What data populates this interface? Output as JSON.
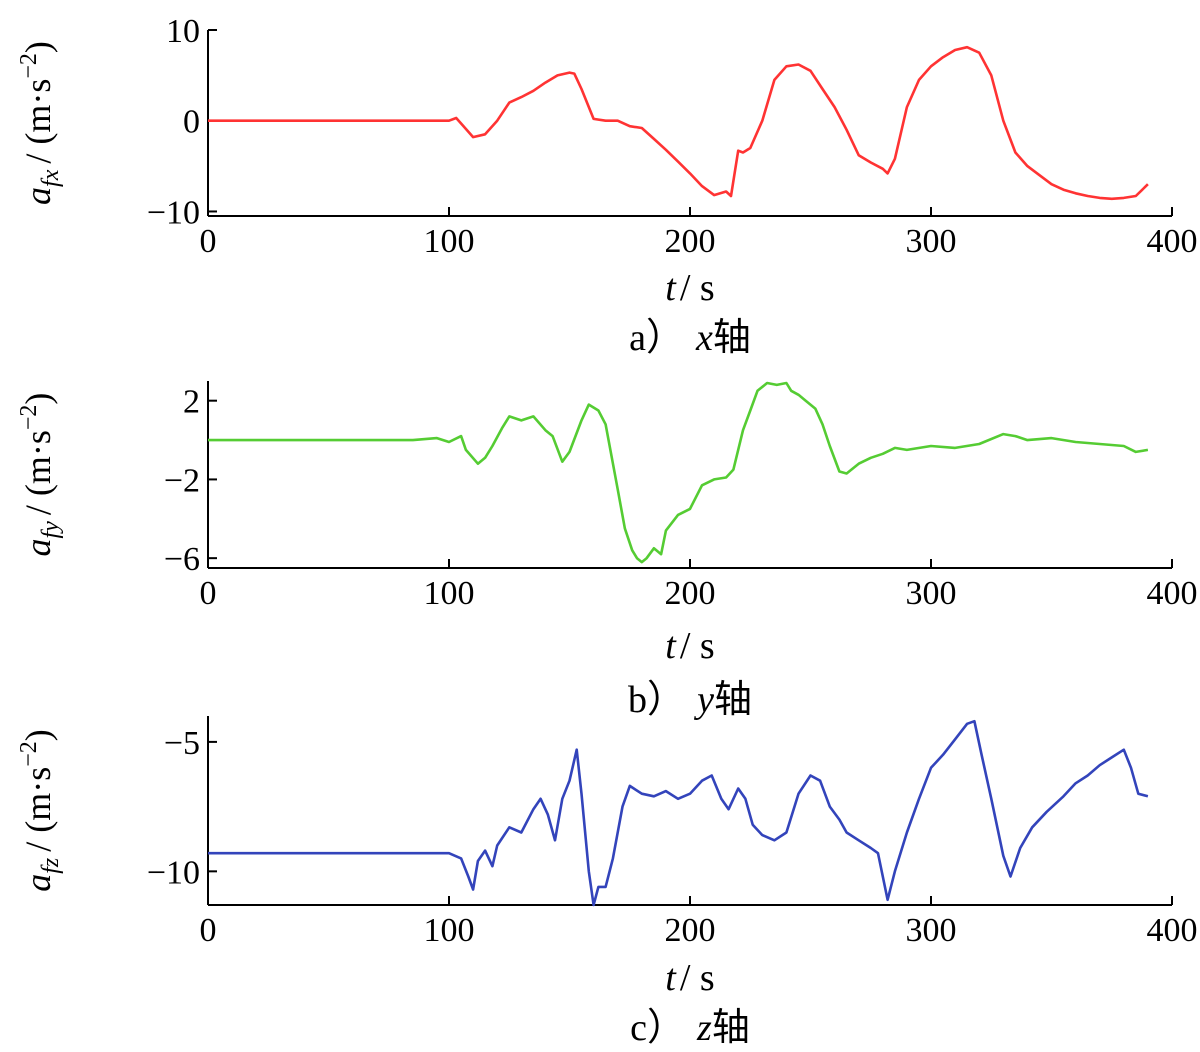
{
  "chart_data": [
    {
      "type": "line",
      "caption": "a） x轴",
      "caption_letter": "a）",
      "caption_axis": "x",
      "caption_suffix": "轴",
      "ylabel": "a_fx / (m·s^-2)",
      "ylabel_var": "a",
      "ylabel_sub": "fx",
      "ylabel_unit": "/ (m·s",
      "ylabel_exp": "−2",
      "xlabel": "t / s",
      "xlabel_var": "t",
      "xlabel_unit": "/ s",
      "xlim": [
        0,
        400
      ],
      "ylim": [
        -10.5,
        10
      ],
      "xticks": [
        0,
        100,
        200,
        300,
        400
      ],
      "xtick_labels": [
        "0",
        "100",
        "200",
        "300",
        "400"
      ],
      "yticks": [
        -10,
        0,
        10
      ],
      "ytick_labels": [
        "−10",
        "0",
        "10"
      ],
      "color": "#ff3333",
      "series": [
        {
          "x": [
            0,
            50,
            100,
            103,
            105,
            110,
            115,
            120,
            125,
            130,
            135,
            140,
            145,
            150,
            152,
            155,
            160,
            165,
            170,
            175,
            180,
            185,
            190,
            195,
            200,
            205,
            210,
            215,
            217,
            220,
            222,
            225,
            230,
            235,
            240,
            245,
            250,
            255,
            260,
            265,
            270,
            275,
            280,
            282,
            285,
            290,
            295,
            300,
            305,
            310,
            315,
            320,
            325,
            330,
            335,
            340,
            345,
            350,
            355,
            360,
            365,
            370,
            375,
            380,
            385,
            390
          ],
          "y": [
            0,
            0,
            0,
            0.3,
            -0.3,
            -1.8,
            -1.5,
            0,
            2,
            2.6,
            3.3,
            4.2,
            5,
            5.3,
            5.2,
            3.5,
            0.2,
            0,
            0,
            -0.6,
            -0.8,
            -2,
            -3.2,
            -4.5,
            -5.8,
            -7.2,
            -8.2,
            -7.8,
            -8.3,
            -3.3,
            -3.5,
            -3,
            0,
            4.5,
            6,
            6.2,
            5.5,
            3.5,
            1.5,
            -1,
            -3.8,
            -4.6,
            -5.3,
            -5.8,
            -4.2,
            1.5,
            4.5,
            6,
            7,
            7.8,
            8.1,
            7.5,
            5,
            0,
            -3.5,
            -5,
            -6,
            -7,
            -7.6,
            -8,
            -8.3,
            -8.5,
            -8.6,
            -8.5,
            -8.3,
            -7
          ]
        }
      ]
    },
    {
      "type": "line",
      "caption": "b） y轴",
      "caption_letter": "b）",
      "caption_axis": "y",
      "caption_suffix": "轴",
      "ylabel": "a_fy / (m·s^-2)",
      "ylabel_var": "a",
      "ylabel_sub": "fy",
      "ylabel_unit": "/ (m·s",
      "ylabel_exp": "−2",
      "xlabel": "t / s",
      "xlabel_var": "t",
      "xlabel_unit": "/ s",
      "xlim": [
        0,
        400
      ],
      "ylim": [
        -6.5,
        3
      ],
      "xticks": [
        0,
        100,
        200,
        300,
        400
      ],
      "xtick_labels": [
        "0",
        "100",
        "200",
        "300",
        "400"
      ],
      "yticks": [
        -6,
        -2,
        2
      ],
      "ytick_labels": [
        "−6",
        "−2",
        "2"
      ],
      "color": "#55cc33",
      "series": [
        {
          "x": [
            0,
            50,
            85,
            95,
            100,
            105,
            107,
            112,
            115,
            118,
            122,
            125,
            130,
            135,
            140,
            143,
            147,
            150,
            155,
            158,
            162,
            165,
            170,
            173,
            176,
            178,
            180,
            182,
            185,
            188,
            190,
            195,
            200,
            205,
            210,
            215,
            218,
            222,
            225,
            228,
            232,
            236,
            240,
            242,
            245,
            248,
            252,
            255,
            258,
            262,
            265,
            270,
            275,
            280,
            285,
            290,
            300,
            310,
            320,
            330,
            335,
            340,
            350,
            360,
            370,
            380,
            385,
            390
          ],
          "y": [
            0,
            0,
            0,
            0.1,
            -0.1,
            0.2,
            -0.5,
            -1.2,
            -0.9,
            -0.3,
            0.6,
            1.2,
            1,
            1.2,
            0.5,
            0.2,
            -1.1,
            -0.6,
            1,
            1.8,
            1.5,
            0.8,
            -2.5,
            -4.5,
            -5.6,
            -6,
            -6.2,
            -6,
            -5.5,
            -5.8,
            -4.6,
            -3.8,
            -3.5,
            -2.3,
            -2,
            -1.9,
            -1.5,
            0.5,
            1.5,
            2.5,
            2.9,
            2.8,
            2.9,
            2.5,
            2.3,
            2,
            1.6,
            0.8,
            -0.3,
            -1.6,
            -1.7,
            -1.2,
            -0.9,
            -0.7,
            -0.4,
            -0.5,
            -0.3,
            -0.4,
            -0.2,
            0.3,
            0.2,
            0,
            0.1,
            -0.1,
            -0.2,
            -0.3,
            -0.6,
            -0.5
          ]
        }
      ]
    },
    {
      "type": "line",
      "caption": "c） z轴",
      "caption_letter": "c）",
      "caption_axis": "z",
      "caption_suffix": "轴",
      "ylabel": "a_fz / (m·s^-2)",
      "ylabel_var": "a",
      "ylabel_sub": "fz",
      "ylabel_unit": "/ (m·s",
      "ylabel_exp": "−2",
      "xlabel": "t / s",
      "xlabel_var": "t",
      "xlabel_unit": "/ s",
      "xlim": [
        0,
        400
      ],
      "ylim": [
        -11.3,
        -4
      ],
      "xticks": [
        0,
        100,
        200,
        300,
        400
      ],
      "xtick_labels": [
        "0",
        "100",
        "200",
        "300",
        "400"
      ],
      "yticks": [
        -10,
        -5
      ],
      "ytick_labels": [
        "−10",
        "−5"
      ],
      "color": "#3344bb",
      "series": [
        {
          "x": [
            0,
            50,
            100,
            105,
            108,
            110,
            112,
            115,
            118,
            120,
            125,
            130,
            135,
            138,
            141,
            144,
            147,
            150,
            153,
            155,
            158,
            160,
            162,
            165,
            168,
            172,
            175,
            180,
            185,
            190,
            195,
            200,
            205,
            209,
            213,
            216,
            220,
            223,
            226,
            230,
            235,
            240,
            245,
            250,
            254,
            258,
            262,
            265,
            270,
            275,
            278,
            282,
            285,
            290,
            295,
            300,
            305,
            310,
            315,
            318,
            321,
            325,
            330,
            333,
            337,
            342,
            348,
            355,
            360,
            365,
            370,
            375,
            380,
            383,
            386,
            390
          ],
          "y": [
            -9.3,
            -9.3,
            -9.3,
            -9.5,
            -10.2,
            -10.7,
            -9.6,
            -9.2,
            -9.8,
            -9,
            -8.3,
            -8.5,
            -7.6,
            -7.2,
            -7.8,
            -8.8,
            -7.2,
            -6.5,
            -5.3,
            -7,
            -10,
            -11.3,
            -10.6,
            -10.6,
            -9.5,
            -7.5,
            -6.7,
            -7,
            -7.1,
            -6.9,
            -7.2,
            -7,
            -6.5,
            -6.3,
            -7.2,
            -7.6,
            -6.8,
            -7.2,
            -8.2,
            -8.6,
            -8.8,
            -8.5,
            -7,
            -6.3,
            -6.5,
            -7.5,
            -8,
            -8.5,
            -8.8,
            -9.1,
            -9.3,
            -11.1,
            -10,
            -8.5,
            -7.2,
            -6,
            -5.5,
            -4.9,
            -4.3,
            -4.2,
            -5.5,
            -7.2,
            -9.4,
            -10.2,
            -9.1,
            -8.3,
            -7.7,
            -7.1,
            -6.6,
            -6.3,
            -5.9,
            -5.6,
            -5.3,
            -6,
            -7,
            -7.1
          ]
        }
      ]
    }
  ]
}
